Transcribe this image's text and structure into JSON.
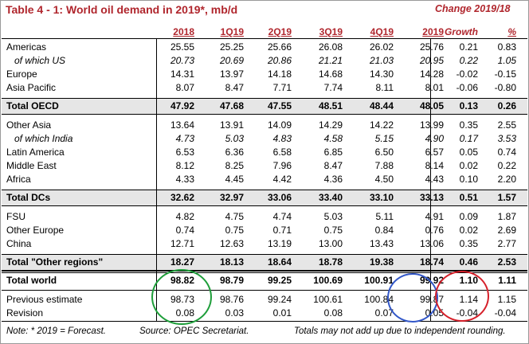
{
  "title": "Table 4 - 1: World oil demand in 2019*, mb/d",
  "change_header": "Change 2019/18",
  "columns": [
    "2018",
    "1Q19",
    "2Q19",
    "3Q19",
    "4Q19",
    "2019",
    "Growth",
    "%"
  ],
  "rows": [
    {
      "label": "Americas",
      "values": [
        "25.55",
        "25.25",
        "25.66",
        "26.08",
        "26.02",
        "25.76",
        "0.21",
        "0.83"
      ]
    },
    {
      "label": "of which US",
      "values": [
        "20.73",
        "20.69",
        "20.86",
        "21.21",
        "21.03",
        "20.95",
        "0.22",
        "1.05"
      ]
    },
    {
      "label": "Europe",
      "values": [
        "14.31",
        "13.97",
        "14.18",
        "14.68",
        "14.30",
        "14.28",
        "-0.02",
        "-0.15"
      ]
    },
    {
      "label": "Asia Pacific",
      "values": [
        "8.07",
        "8.47",
        "7.71",
        "7.74",
        "8.11",
        "8.01",
        "-0.06",
        "-0.80"
      ]
    },
    {
      "label": "Total OECD",
      "values": [
        "47.92",
        "47.68",
        "47.55",
        "48.51",
        "48.44",
        "48.05",
        "0.13",
        "0.26"
      ]
    },
    {
      "label": "Other Asia",
      "values": [
        "13.64",
        "13.91",
        "14.09",
        "14.29",
        "14.22",
        "13.99",
        "0.35",
        "2.55"
      ]
    },
    {
      "label": "of which India",
      "values": [
        "4.73",
        "5.03",
        "4.83",
        "4.58",
        "5.15",
        "4.90",
        "0.17",
        "3.53"
      ]
    },
    {
      "label": "Latin America",
      "values": [
        "6.53",
        "6.36",
        "6.58",
        "6.85",
        "6.50",
        "6.57",
        "0.05",
        "0.74"
      ]
    },
    {
      "label": "Middle East",
      "values": [
        "8.12",
        "8.25",
        "7.96",
        "8.47",
        "7.88",
        "8.14",
        "0.02",
        "0.22"
      ]
    },
    {
      "label": "Africa",
      "values": [
        "4.33",
        "4.45",
        "4.42",
        "4.36",
        "4.50",
        "4.43",
        "0.10",
        "2.20"
      ]
    },
    {
      "label": "Total DCs",
      "values": [
        "32.62",
        "32.97",
        "33.06",
        "33.40",
        "33.10",
        "33.13",
        "0.51",
        "1.57"
      ]
    },
    {
      "label": "FSU",
      "values": [
        "4.82",
        "4.75",
        "4.74",
        "5.03",
        "5.11",
        "4.91",
        "0.09",
        "1.87"
      ]
    },
    {
      "label": "Other Europe",
      "values": [
        "0.74",
        "0.75",
        "0.71",
        "0.75",
        "0.84",
        "0.76",
        "0.02",
        "2.69"
      ]
    },
    {
      "label": "China",
      "values": [
        "12.71",
        "12.63",
        "13.19",
        "13.00",
        "13.43",
        "13.06",
        "0.35",
        "2.77"
      ]
    },
    {
      "label": "Total \"Other regions\"",
      "values": [
        "18.27",
        "18.13",
        "18.64",
        "18.78",
        "19.38",
        "18.74",
        "0.46",
        "2.53"
      ]
    },
    {
      "label": "Total world",
      "values": [
        "98.82",
        "98.79",
        "99.25",
        "100.69",
        "100.91",
        "99.92",
        "1.10",
        "1.11"
      ]
    },
    {
      "label": "Previous estimate",
      "values": [
        "98.73",
        "98.76",
        "99.24",
        "100.61",
        "100.84",
        "99.87",
        "1.14",
        "1.15"
      ]
    },
    {
      "label": "Revision",
      "values": [
        "0.08",
        "0.03",
        "0.01",
        "0.08",
        "0.07",
        "0.05",
        "-0.04",
        "-0.04"
      ]
    }
  ],
  "notes": {
    "left": "Note: * 2019 = Forecast.",
    "source": "Source: OPEC Secretariat.",
    "right": "Totals may not add up due to independent rounding."
  },
  "colors": {
    "header_red": "#b0262d",
    "shade_gray": "#e6e6e6",
    "circle_green": "#1e9e3a",
    "circle_blue": "#3257c8",
    "circle_red": "#d6202a"
  }
}
